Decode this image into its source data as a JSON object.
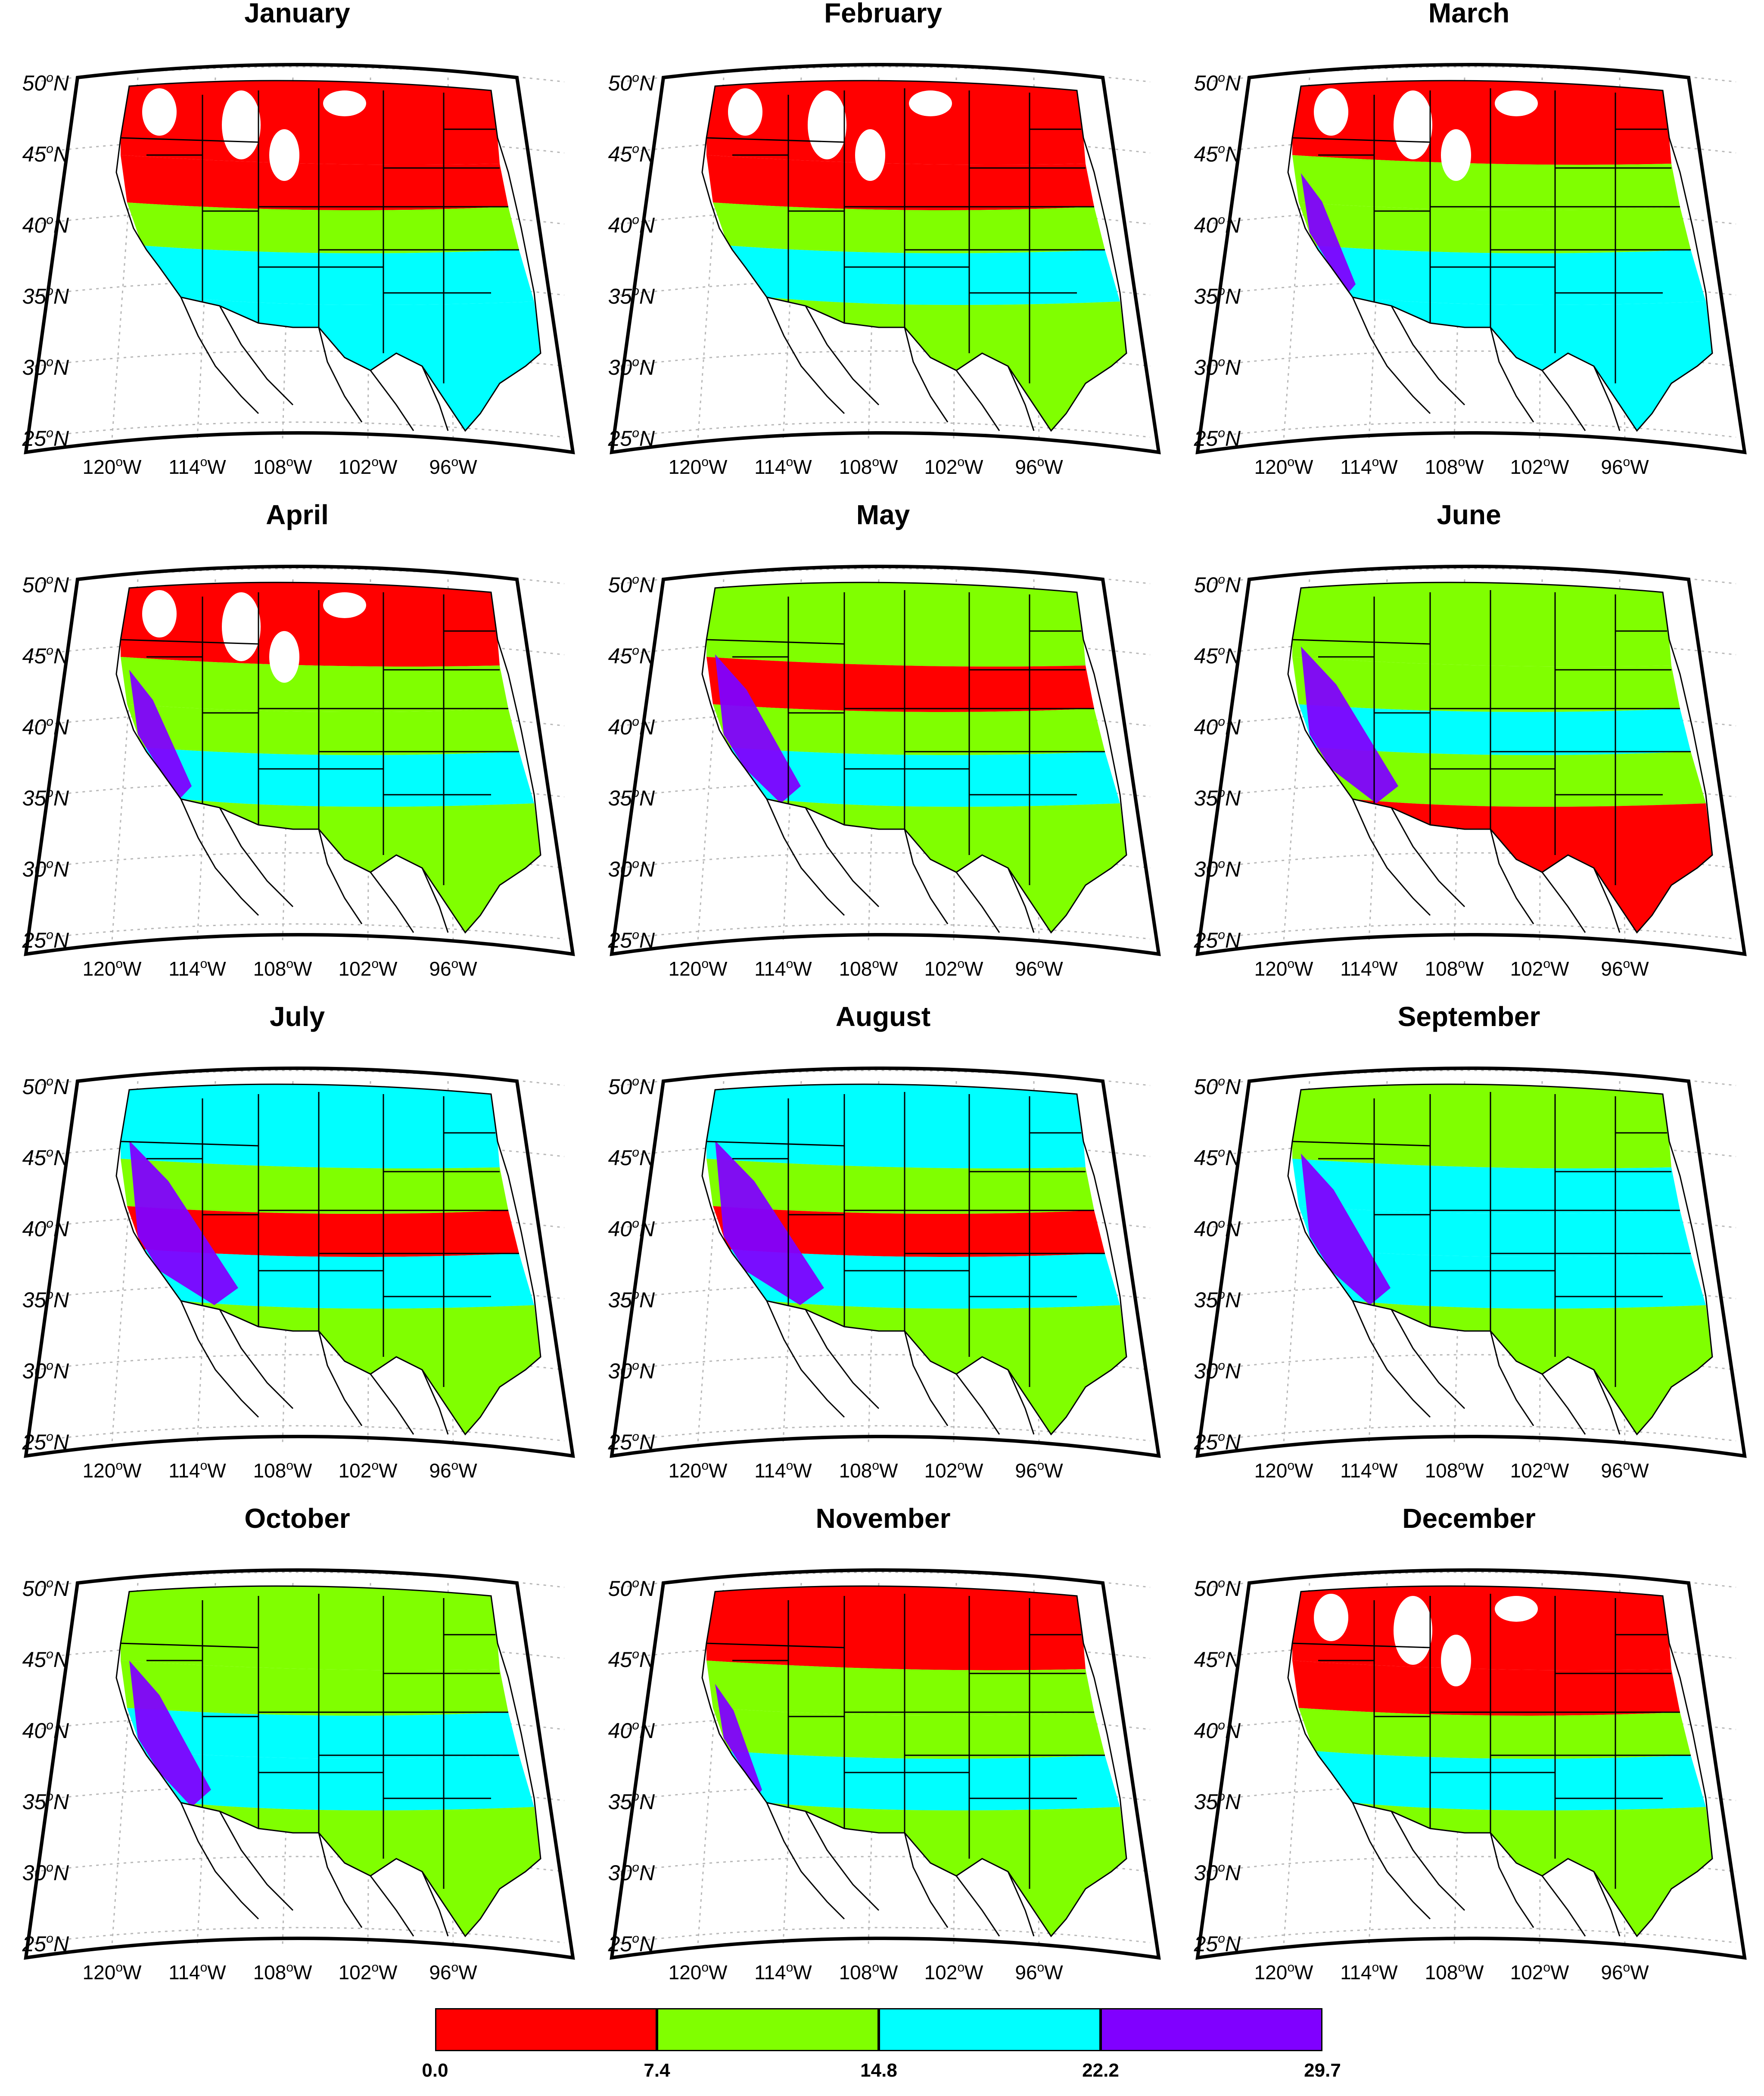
{
  "panels": [
    {
      "title": "January",
      "fill": [
        "red",
        "red",
        "green",
        "cyan",
        "cyan"
      ],
      "snow": true,
      "purple": 0
    },
    {
      "title": "February",
      "fill": [
        "red",
        "red",
        "green",
        "cyan",
        "green"
      ],
      "snow": true,
      "purple": 0
    },
    {
      "title": "March",
      "fill": [
        "red",
        "green",
        "green",
        "cyan",
        "cyan"
      ],
      "snow": true,
      "purple": 0.15
    },
    {
      "title": "April",
      "fill": [
        "red",
        "green",
        "green",
        "cyan",
        "green"
      ],
      "snow": true,
      "purple": 0.25
    },
    {
      "title": "May",
      "fill": [
        "green",
        "red",
        "green",
        "cyan",
        "green"
      ],
      "snow": false,
      "purple": 0.55
    },
    {
      "title": "June",
      "fill": [
        "green",
        "green",
        "cyan",
        "green",
        "red"
      ],
      "snow": false,
      "purple": 0.7
    },
    {
      "title": "July",
      "fill": [
        "cyan",
        "green",
        "red",
        "cyan",
        "green"
      ],
      "snow": false,
      "purple": 0.85
    },
    {
      "title": "August",
      "fill": [
        "cyan",
        "green",
        "red",
        "cyan",
        "green"
      ],
      "snow": false,
      "purple": 0.85
    },
    {
      "title": "September",
      "fill": [
        "green",
        "cyan",
        "cyan",
        "cyan",
        "green"
      ],
      "snow": false,
      "purple": 0.6
    },
    {
      "title": "October",
      "fill": [
        "green",
        "green",
        "cyan",
        "cyan",
        "green"
      ],
      "snow": false,
      "purple": 0.5
    },
    {
      "title": "November",
      "fill": [
        "red",
        "green",
        "green",
        "cyan",
        "green"
      ],
      "snow": false,
      "purple": 0.05
    },
    {
      "title": "December",
      "fill": [
        "red",
        "red",
        "green",
        "cyan",
        "green"
      ],
      "snow": true,
      "purple": 0
    }
  ],
  "latitude_labels": [
    {
      "num": "50",
      "sup": "o",
      "hem": "N"
    },
    {
      "num": "45",
      "sup": "o",
      "hem": "N"
    },
    {
      "num": "40",
      "sup": "o",
      "hem": "N"
    },
    {
      "num": "35",
      "sup": "o",
      "hem": "N"
    },
    {
      "num": "30",
      "sup": "o",
      "hem": "N"
    },
    {
      "num": "25",
      "sup": "o",
      "hem": "N"
    }
  ],
  "longitude_labels": [
    {
      "num": "120",
      "sup": "o",
      "hem": "W"
    },
    {
      "num": "114",
      "sup": "o",
      "hem": "W"
    },
    {
      "num": "108",
      "sup": "o",
      "hem": "W"
    },
    {
      "num": "102",
      "sup": "o",
      "hem": "W"
    },
    {
      "num": "96",
      "sup": "o",
      "hem": "W"
    }
  ],
  "colors": {
    "red": "#ff0000",
    "green": "#80ff00",
    "cyan": "#00ffff",
    "purple": "#8000ff",
    "snow": "#ffffff"
  },
  "colorbar": {
    "ticks": [
      "0.0",
      "7.4",
      "14.8",
      "22.2",
      "29.7"
    ],
    "segments": [
      "red",
      "green",
      "cyan",
      "purple"
    ]
  }
}
